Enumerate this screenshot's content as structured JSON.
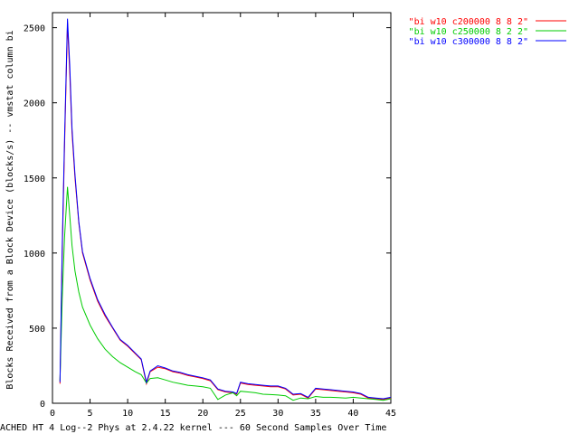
{
  "chart_data": {
    "type": "line",
    "xlabel": "ACHED HT 4 Log--2 Phys at 2.4.22 kernel --- 60 Second Samples Over Time",
    "ylabel": "Blocks Received from a Block Device (blocks/s) -- vmstat column bi",
    "xlim": [
      0,
      45
    ],
    "ylim": [
      0,
      2600
    ],
    "xticks": [
      0,
      5,
      10,
      15,
      20,
      25,
      30,
      35,
      40,
      45
    ],
    "yticks": [
      0,
      500,
      1000,
      1500,
      2000,
      2500
    ],
    "grid": false,
    "legend_position": "top-right",
    "series": [
      {
        "name": "\"bi w10 c200000 8 8 2\"",
        "color": "#ff0000",
        "x": [
          1,
          1.3,
          1.6,
          2,
          2.3,
          2.6,
          3,
          3.5,
          4,
          5,
          6,
          7,
          8,
          9,
          10,
          11,
          11.8,
          12.5,
          13,
          14,
          15,
          16,
          17,
          18,
          19,
          20,
          21,
          22,
          23,
          24,
          24.5,
          25,
          26,
          27,
          28,
          29,
          30,
          31,
          32,
          33,
          34,
          35,
          36,
          37,
          38,
          39,
          40,
          41,
          42,
          43,
          44,
          45
        ],
        "y": [
          130,
          1000,
          1700,
          2530,
          2200,
          1800,
          1500,
          1200,
          1000,
          820,
          680,
          580,
          500,
          420,
          380,
          330,
          290,
          130,
          210,
          240,
          230,
          210,
          200,
          185,
          175,
          165,
          150,
          90,
          75,
          70,
          60,
          135,
          125,
          120,
          115,
          110,
          110,
          95,
          55,
          60,
          35,
          95,
          90,
          85,
          80,
          75,
          70,
          60,
          35,
          30,
          25,
          35
        ]
      },
      {
        "name": "\"bi w10 c250000 8 2 2\"",
        "color": "#00cc00",
        "x": [
          1,
          1.3,
          1.6,
          2,
          2.3,
          2.6,
          3,
          3.5,
          4,
          5,
          6,
          7,
          8,
          9,
          10,
          11,
          11.8,
          12.5,
          13,
          14,
          15,
          16,
          17,
          18,
          19,
          20,
          21,
          22,
          23,
          24,
          24.5,
          25,
          26,
          27,
          28,
          29,
          30,
          31,
          32,
          33,
          34,
          35,
          36,
          37,
          38,
          39,
          40,
          41,
          42,
          43,
          44,
          45
        ],
        "y": [
          150,
          700,
          1100,
          1440,
          1250,
          1050,
          880,
          740,
          640,
          520,
          430,
          360,
          310,
          270,
          240,
          210,
          190,
          135,
          165,
          170,
          155,
          140,
          130,
          120,
          115,
          110,
          100,
          25,
          55,
          70,
          50,
          80,
          75,
          70,
          60,
          58,
          55,
          50,
          20,
          35,
          30,
          45,
          40,
          40,
          38,
          35,
          40,
          35,
          30,
          25,
          20,
          30
        ]
      },
      {
        "name": "\"bi w10 c300000 8 8 2\"",
        "color": "#0000ff",
        "x": [
          1,
          1.3,
          1.6,
          2,
          2.3,
          2.6,
          3,
          3.5,
          4,
          5,
          6,
          7,
          8,
          9,
          10,
          11,
          11.8,
          12.5,
          13,
          14,
          15,
          16,
          17,
          18,
          19,
          20,
          21,
          22,
          23,
          24,
          24.5,
          25,
          26,
          27,
          28,
          29,
          30,
          31,
          32,
          33,
          34,
          35,
          36,
          37,
          38,
          39,
          40,
          41,
          42,
          43,
          44,
          45
        ],
        "y": [
          140,
          1050,
          1750,
          2560,
          2250,
          1830,
          1520,
          1210,
          1010,
          830,
          690,
          590,
          505,
          425,
          385,
          335,
          295,
          140,
          215,
          250,
          235,
          215,
          205,
          190,
          180,
          170,
          155,
          95,
          80,
          75,
          65,
          140,
          130,
          125,
          120,
          115,
          115,
          100,
          60,
          65,
          40,
          100,
          95,
          90,
          85,
          80,
          75,
          65,
          40,
          35,
          30,
          40
        ]
      }
    ]
  }
}
